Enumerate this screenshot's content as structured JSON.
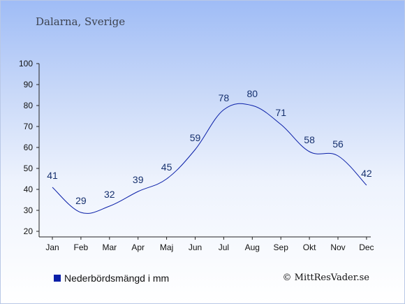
{
  "header": {
    "title": "Dalarna, Sverige"
  },
  "legend": {
    "label": "Nederbördsmängd i mm",
    "color": "#0a1fa8"
  },
  "credit": {
    "text": "© MittResVader.se"
  },
  "chart_data": {
    "type": "line",
    "categories": [
      "Jan",
      "Feb",
      "Mar",
      "Apr",
      "Maj",
      "Jun",
      "Jul",
      "Aug",
      "Sep",
      "Okt",
      "Nov",
      "Dec"
    ],
    "series": [
      {
        "name": "Nederbördsmängd i mm",
        "values": [
          41,
          29,
          32,
          39,
          45,
          59,
          78,
          80,
          71,
          58,
          56,
          42
        ],
        "color": "#0a1fa8"
      }
    ],
    "ylim": [
      20,
      100
    ],
    "yticks": [
      20,
      30,
      40,
      50,
      60,
      70,
      80,
      90,
      100
    ],
    "data_labels": true,
    "grid": false,
    "legend_position": "bottom-left"
  }
}
